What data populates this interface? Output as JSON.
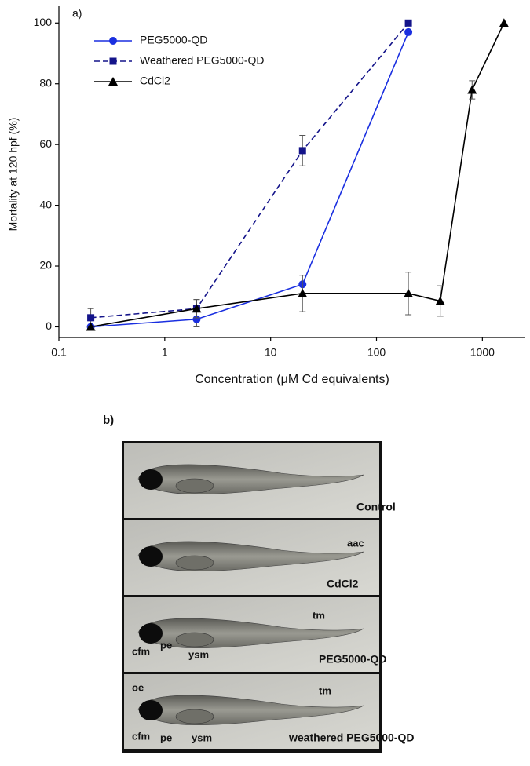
{
  "chart_data": {
    "type": "line",
    "panel_label": "a)",
    "xlabel": "Concentration (μM Cd equivalents)",
    "ylabel": "Mortality at 120 hpf (%)",
    "log_x": true,
    "xlim": [
      0.1,
      2500
    ],
    "xticks": [
      0.1,
      1,
      10,
      100,
      1000
    ],
    "ylim": [
      -3.5,
      105.5
    ],
    "yticks": [
      0,
      20,
      40,
      60,
      80,
      100
    ],
    "grid": false,
    "legend": "upper-left",
    "series": [
      {
        "name": "PEG5000-QD",
        "color": "#1a2fe0",
        "marker": "circle",
        "dash": false,
        "x": [
          0.2,
          2,
          20,
          200
        ],
        "values": [
          0,
          2.5,
          14,
          97
        ],
        "errors": [
          null,
          2.5,
          3,
          null
        ]
      },
      {
        "name": "Weathered PEG5000-QD",
        "color": "#14148a",
        "marker": "square",
        "dash": true,
        "x": [
          0.2,
          2,
          20,
          200
        ],
        "values": [
          3,
          6,
          58,
          100
        ],
        "errors": [
          3,
          3,
          5,
          null
        ]
      },
      {
        "name": "CdCl2",
        "color": "#000000",
        "marker": "triangle",
        "dash": false,
        "x": [
          0.2,
          2,
          20,
          200,
          400,
          800,
          1600
        ],
        "values": [
          0,
          6,
          11,
          11,
          8.5,
          78,
          100
        ],
        "errors": [
          null,
          3,
          6,
          7,
          5,
          3,
          null
        ]
      }
    ]
  },
  "panel_b": {
    "label": "b)",
    "images": [
      {
        "caption": "Control",
        "annotations": []
      },
      {
        "caption": "CdCl2",
        "annotations": [
          "aac"
        ]
      },
      {
        "caption": "PEG5000-QD",
        "annotations": [
          "tm",
          "cfm",
          "pe",
          "ysm"
        ]
      },
      {
        "caption": "weathered PEG5000-QD",
        "annotations": [
          "oe",
          "tm",
          "cfm",
          "pe",
          "ysm"
        ]
      }
    ]
  }
}
